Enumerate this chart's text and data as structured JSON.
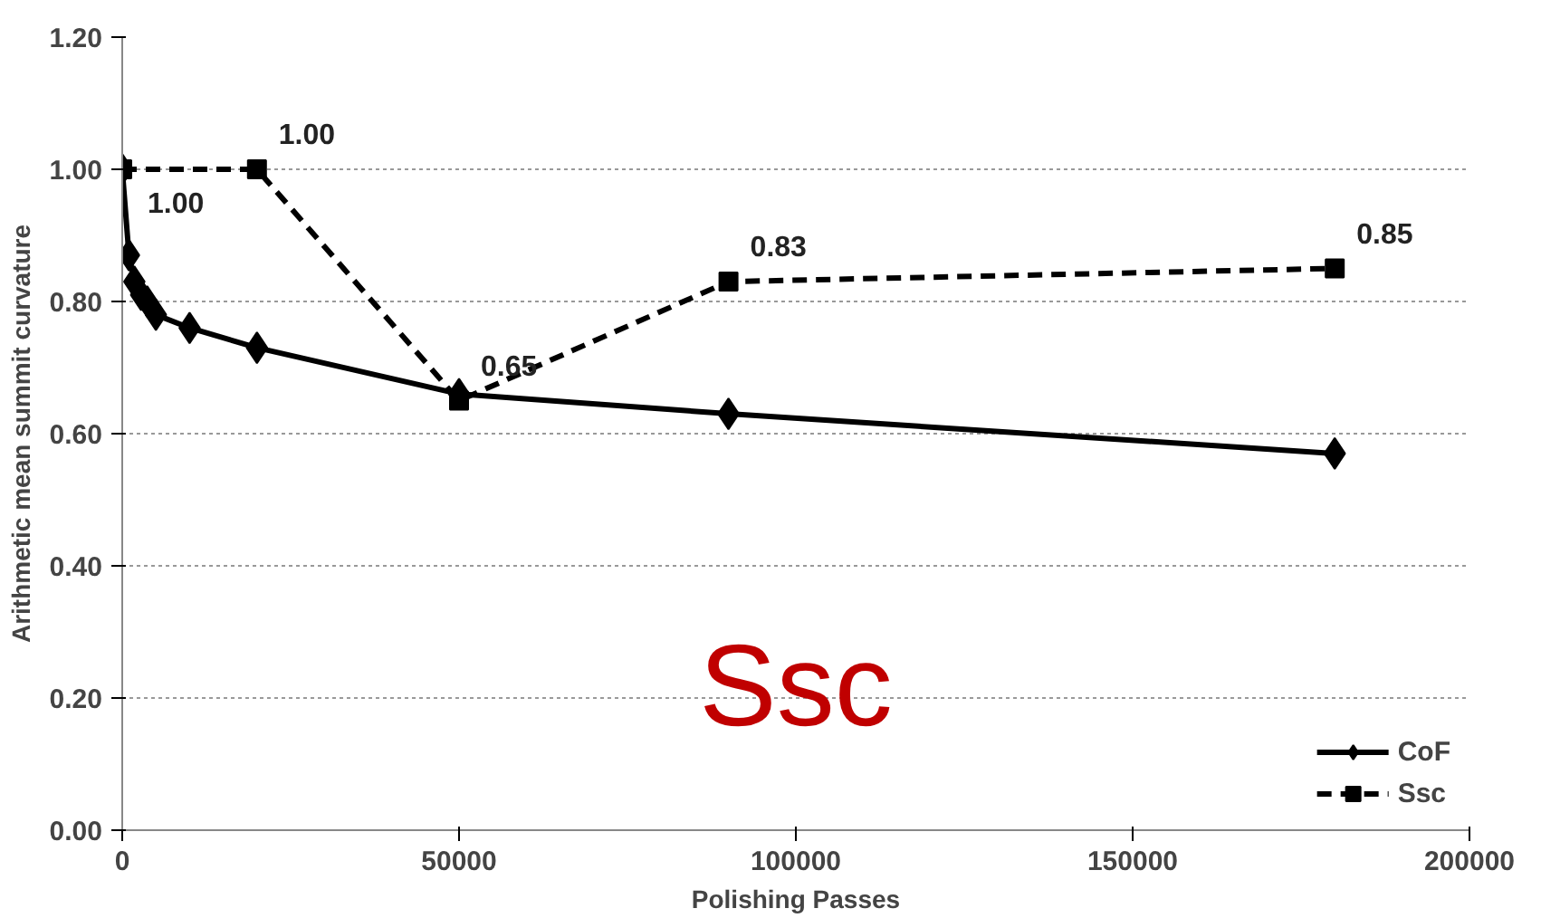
{
  "chart_data": {
    "type": "line",
    "xlabel": "Polishing Passes",
    "ylabel": "Arithmetic mean summit curvature",
    "xlim": [
      0,
      200000
    ],
    "xticks": [
      0,
      50000,
      100000,
      150000,
      200000
    ],
    "ylim": [
      0,
      1.2
    ],
    "yticks": [
      {
        "value": 0,
        "label": "0.00"
      },
      {
        "value": 0.2,
        "label": "0.20"
      },
      {
        "value": 0.4,
        "label": "0.40"
      },
      {
        "value": 0.6,
        "label": "0.60"
      },
      {
        "value": 0.8,
        "label": "0.80"
      },
      {
        "value": 1.0,
        "label": "1.00"
      },
      {
        "value": 1.2,
        "label": "1.20"
      }
    ],
    "grid": "y",
    "legend": "bottom right",
    "annotations": [
      "Ssc"
    ],
    "series": [
      {
        "name": "CoF",
        "color": "#000000",
        "marker": "diamond",
        "line_style": "solid",
        "x": [
          0,
          1000,
          1800,
          2800,
          3700,
          5000,
          10000,
          20000,
          50000,
          90000,
          180000
        ],
        "values": [
          1.0,
          0.87,
          0.83,
          0.81,
          0.8,
          0.78,
          0.76,
          0.73,
          0.66,
          0.63,
          0.57
        ]
      },
      {
        "name": "Ssc",
        "color": "#000000",
        "marker": "square",
        "line_style": "dashed",
        "x": [
          0,
          20000,
          50000,
          90000,
          180000
        ],
        "values": [
          1.0,
          1.0,
          0.65,
          0.83,
          0.85
        ],
        "value_labels": [
          "1.00",
          "1.00",
          "0.65",
          "0.83",
          "0.85"
        ]
      }
    ]
  }
}
